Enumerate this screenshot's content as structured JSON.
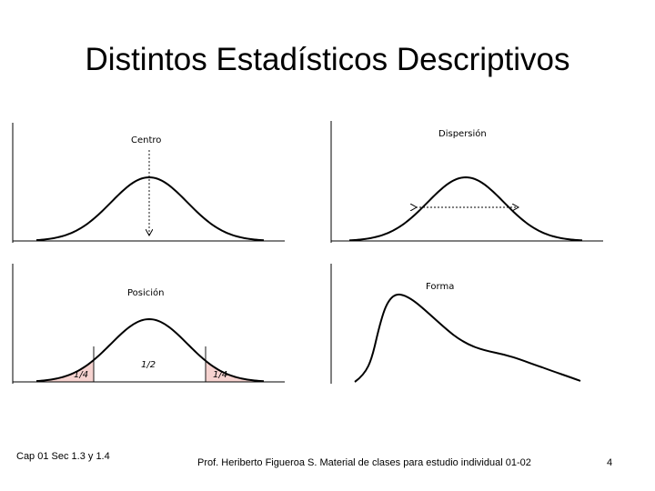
{
  "slide": {
    "title": "Distintos Estadísticos Descriptivos"
  },
  "panels": {
    "center": {
      "label": "Centro"
    },
    "dispersion": {
      "label": "Dispersión"
    },
    "position": {
      "label": "Posición",
      "left_tail": "1/4",
      "middle": "1/2",
      "right_tail": "1/4"
    },
    "shape": {
      "label": "Forma"
    }
  },
  "colors": {
    "curve": "#000000",
    "tail_fill": "#f6d3d0",
    "axis": "#000000"
  },
  "footer": {
    "left": "Cap 01 Sec 1.3 y 1.4",
    "center": "Prof. Heriberto Figueroa S. Material de clases para estudio individual 01-02",
    "page": "4"
  }
}
